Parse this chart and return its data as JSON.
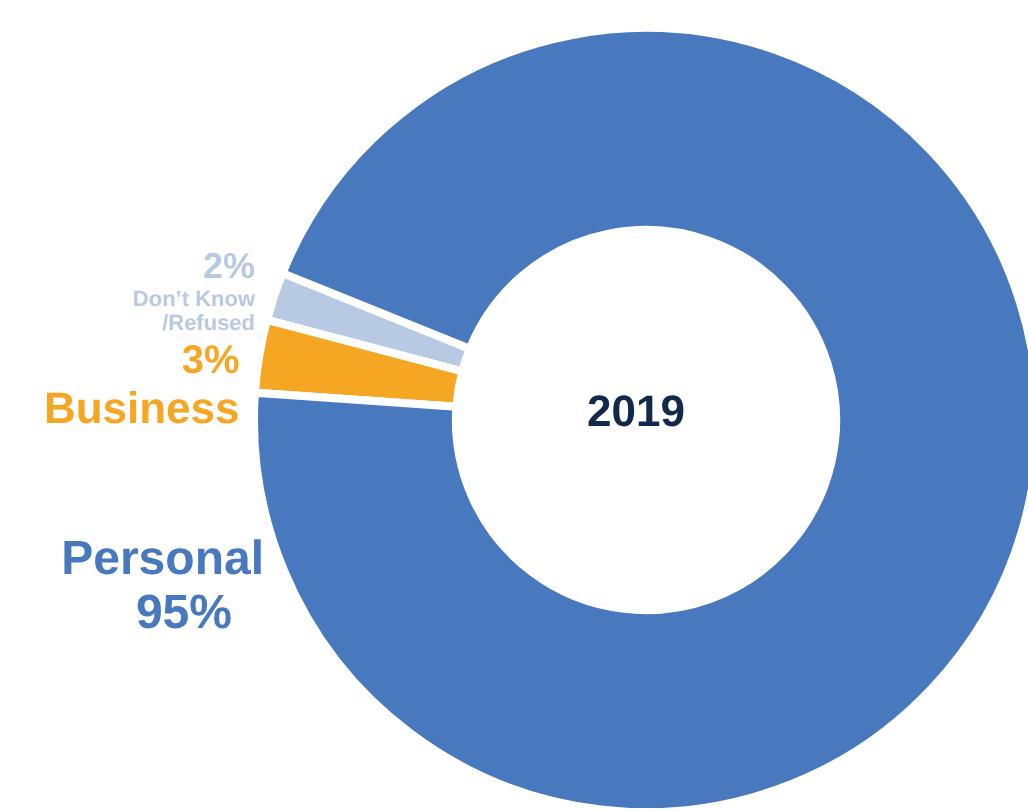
{
  "chart_data": {
    "type": "donut",
    "title": "2019",
    "categories": [
      "Don’t Know\n/Refused",
      "Business",
      "Personal"
    ],
    "values": [
      2,
      3,
      95
    ],
    "value_labels": [
      "2%",
      "3%",
      "95%"
    ],
    "colors": [
      "#b7c9e3",
      "#f5a623",
      "#4878bd"
    ]
  }
}
